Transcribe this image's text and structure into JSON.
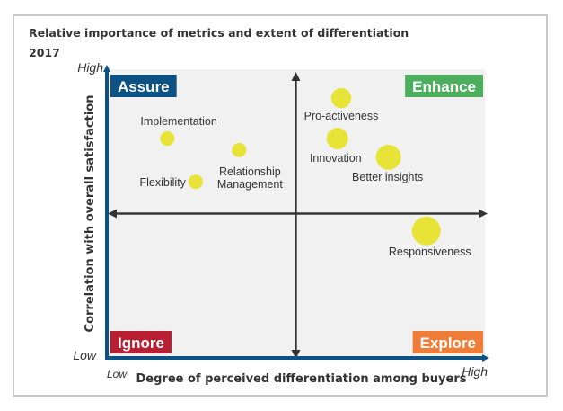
{
  "chart_data": {
    "type": "scatter",
    "subtype": "bubble-quadrant",
    "title": "Relative importance of metrics and extent of differentiation",
    "subtitle": "2017",
    "xlabel": "Degree of perceived differentiation among buyers",
    "ylabel": "Correlation with overall satisfaction",
    "x_ticks": {
      "low": "Low",
      "high": "High"
    },
    "y_ticks": {
      "low": "Low",
      "high": "High"
    },
    "xlim": [
      0,
      10
    ],
    "ylim": [
      0,
      10
    ],
    "midpoint": {
      "x": 5,
      "y": 5
    },
    "grid": false,
    "legend": "none",
    "bubble_color": "#e8e337",
    "quadrants": [
      {
        "name": "Assure",
        "position": "top-left",
        "color": "#0c5285"
      },
      {
        "name": "Enhance",
        "position": "top-right",
        "color": "#4caf5e"
      },
      {
        "name": "Ignore",
        "position": "bottom-left",
        "color": "#b91f32"
      },
      {
        "name": "Explore",
        "position": "bottom-right",
        "color": "#ef7d37"
      }
    ],
    "points": [
      {
        "label": "Implementation",
        "x": 1.6,
        "y": 7.6,
        "size": 1.0
      },
      {
        "label": "Relationship Management",
        "x": 3.5,
        "y": 7.2,
        "size": 1.0
      },
      {
        "label": "Flexibility",
        "x": 2.35,
        "y": 6.1,
        "size": 1.0
      },
      {
        "label": "Pro-activeness",
        "x": 6.2,
        "y": 9.0,
        "size": 1.4
      },
      {
        "label": "Innovation",
        "x": 6.1,
        "y": 7.6,
        "size": 1.5
      },
      {
        "label": "Better insights",
        "x": 7.45,
        "y": 6.95,
        "size": 1.75
      },
      {
        "label": "Responsiveness",
        "x": 8.45,
        "y": 4.4,
        "size": 2.0
      }
    ]
  }
}
